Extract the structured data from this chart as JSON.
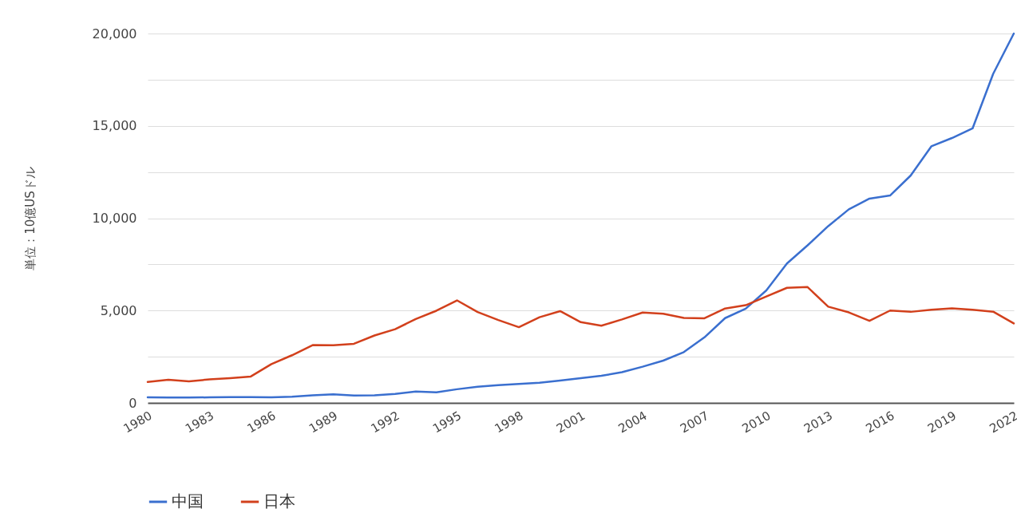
{
  "chart_data": {
    "type": "line",
    "ylabel": "単位：10億USドル",
    "x": [
      1980,
      1981,
      1982,
      1983,
      1984,
      1985,
      1986,
      1987,
      1988,
      1989,
      1990,
      1991,
      1992,
      1993,
      1994,
      1995,
      1996,
      1997,
      1998,
      1999,
      2000,
      2001,
      2002,
      2003,
      2004,
      2005,
      2006,
      2007,
      2008,
      2009,
      2010,
      2011,
      2012,
      2013,
      2014,
      2015,
      2016,
      2017,
      2018,
      2019,
      2020,
      2021,
      2022
    ],
    "series": [
      {
        "name": "中国",
        "color": "#3a6fcf",
        "values": [
          300,
          290,
          290,
          300,
          310,
          310,
          300,
          330,
          410,
          460,
          400,
          410,
          490,
          620,
          570,
          740,
          870,
          960,
          1030,
          1090,
          1210,
          1340,
          1470,
          1660,
          1960,
          2290,
          2750,
          3550,
          4590,
          5100,
          6090,
          7550,
          8530,
          9570,
          10480,
          11060,
          11230,
          12310,
          13890,
          14340,
          14860,
          17820,
          20000
        ]
      },
      {
        "name": "日本",
        "color": "#d2401c",
        "values": [
          1130,
          1250,
          1170,
          1270,
          1340,
          1430,
          2100,
          2580,
          3130,
          3120,
          3200,
          3650,
          3990,
          4540,
          4990,
          5550,
          4920,
          4490,
          4100,
          4640,
          4970,
          4370,
          4180,
          4520,
          4890,
          4830,
          4600,
          4580,
          5110,
          5290,
          5760,
          6230,
          6270,
          5210,
          4900,
          4440,
          5000,
          4930,
          5040,
          5120,
          5040,
          4940,
          4300
        ]
      }
    ],
    "xlim": [
      1980,
      2022
    ],
    "xticks": [
      1980,
      1983,
      1986,
      1989,
      1992,
      1995,
      1998,
      2001,
      2004,
      2007,
      2010,
      2013,
      2016,
      2019,
      2022
    ],
    "ylim": [
      0,
      20000
    ],
    "yticks": [
      0,
      {
        "value": 2500,
        "label": null
      },
      {
        "value": 5000,
        "label": "5,000"
      },
      {
        "value": 7500,
        "label": null
      },
      {
        "value": 10000,
        "label": "10,000"
      },
      {
        "value": 12500,
        "label": null
      },
      {
        "value": 15000,
        "label": "15,000"
      },
      {
        "value": 17500,
        "label": null
      },
      {
        "value": 20000,
        "label": "20,000"
      }
    ],
    "grid": "y",
    "legend": "bottom"
  }
}
